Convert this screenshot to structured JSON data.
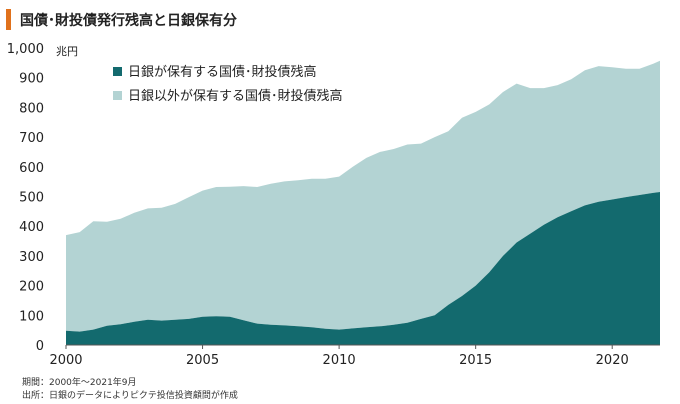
{
  "header": {
    "title": "国債･財投債発行残高と日銀保有分"
  },
  "footnotes": {
    "period": "期間：2000年～2021年9月",
    "source": "出所：日銀のデータによりピクテ投信投資顧問が作成"
  },
  "chart_data": {
    "type": "area",
    "stacked": true,
    "title": "国債･財投債発行残高と日銀保有分",
    "ylabel": "兆円",
    "xlabel": "",
    "xlim": [
      2000,
      2021.75
    ],
    "ylim": [
      0,
      1000
    ],
    "x_ticks": [
      "2000",
      "2005",
      "2010",
      "2015",
      "2020"
    ],
    "y_ticks": [
      "0",
      "100",
      "200",
      "300",
      "400",
      "500",
      "600",
      "700",
      "800",
      "900",
      "1,000"
    ],
    "legend_position": "top-left",
    "grid": false,
    "x": [
      2000,
      2000.5,
      2001,
      2001.5,
      2002,
      2002.5,
      2003,
      2003.5,
      2004,
      2004.5,
      2005,
      2005.5,
      2006,
      2006.5,
      2007,
      2007.5,
      2008,
      2008.5,
      2009,
      2009.5,
      2010,
      2010.5,
      2011,
      2011.5,
      2012,
      2012.5,
      2013,
      2013.5,
      2014,
      2014.5,
      2015,
      2015.5,
      2016,
      2016.5,
      2017,
      2017.5,
      2018,
      2018.5,
      2019,
      2019.5,
      2020,
      2020.5,
      2021,
      2021.5,
      2021.75
    ],
    "series": [
      {
        "name": "日銀が保有する国債･財投債残高",
        "color": "#136a6e",
        "values": [
          48,
          45,
          52,
          65,
          70,
          78,
          85,
          82,
          85,
          88,
          95,
          97,
          95,
          83,
          72,
          68,
          66,
          63,
          60,
          55,
          52,
          56,
          60,
          63,
          68,
          75,
          88,
          100,
          135,
          165,
          200,
          245,
          300,
          345,
          375,
          405,
          430,
          450,
          470,
          482,
          490,
          498,
          505,
          512,
          515
        ]
      },
      {
        "name": "日銀以外が保有する国債･財投債残高",
        "color": "#b3d3d3",
        "values": [
          322,
          335,
          365,
          350,
          355,
          367,
          375,
          380,
          390,
          410,
          425,
          435,
          438,
          452,
          460,
          475,
          485,
          492,
          500,
          505,
          515,
          544,
          570,
          587,
          592,
          600,
          590,
          600,
          585,
          600,
          585,
          565,
          552,
          535,
          490,
          460,
          445,
          445,
          455,
          457,
          445,
          432,
          425,
          435,
          442
        ]
      }
    ]
  }
}
